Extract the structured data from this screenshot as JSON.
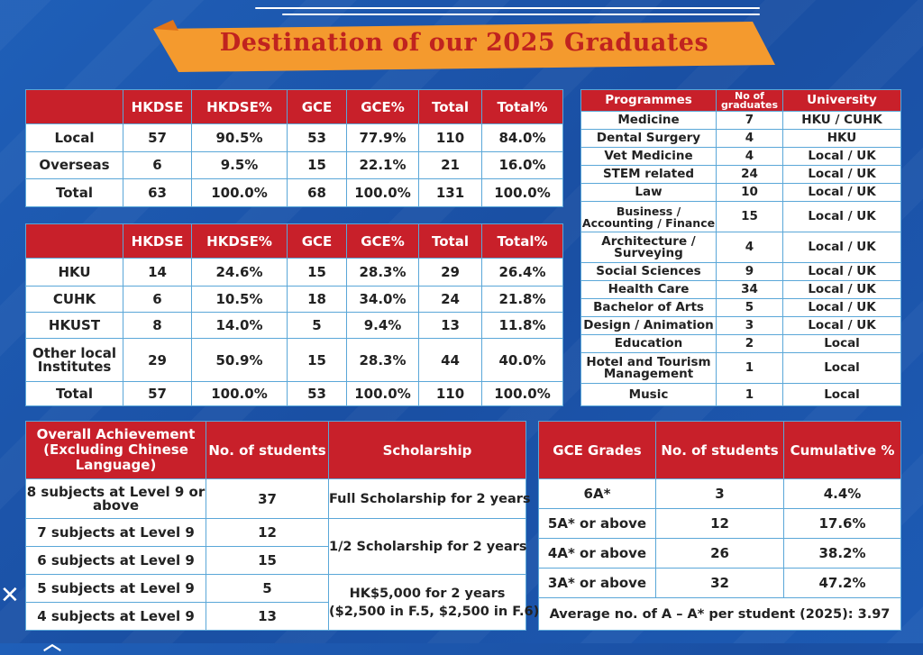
{
  "title": "Destination of our 2025 Graduates",
  "colors": {
    "header_red": "#c8202a",
    "background_blue": "#1f5fb8",
    "banner_orange": "#f49a2e",
    "title_red": "#c0231f"
  },
  "table_destination": {
    "headers": [
      "",
      "HKDSE",
      "HKDSE%",
      "GCE",
      "GCE%",
      "Total",
      "Total%"
    ],
    "rows": [
      [
        "Local",
        "57",
        "90.5%",
        "53",
        "77.9%",
        "110",
        "84.0%"
      ],
      [
        "Overseas",
        "6",
        "9.5%",
        "15",
        "22.1%",
        "21",
        "16.0%"
      ],
      [
        "Total",
        "63",
        "100.0%",
        "68",
        "100.0%",
        "131",
        "100.0%"
      ]
    ]
  },
  "table_local": {
    "headers": [
      "",
      "HKDSE",
      "HKDSE%",
      "GCE",
      "GCE%",
      "Total",
      "Total%"
    ],
    "rows": [
      [
        "HKU",
        "14",
        "24.6%",
        "15",
        "28.3%",
        "29",
        "26.4%"
      ],
      [
        "CUHK",
        "6",
        "10.5%",
        "18",
        "34.0%",
        "24",
        "21.8%"
      ],
      [
        "HKUST",
        "8",
        "14.0%",
        "5",
        "9.4%",
        "13",
        "11.8%"
      ],
      [
        "Other local Institutes",
        "29",
        "50.9%",
        "15",
        "28.3%",
        "44",
        "40.0%"
      ],
      [
        "Total",
        "57",
        "100.0%",
        "53",
        "100.0%",
        "110",
        "100.0%"
      ]
    ]
  },
  "table_programmes": {
    "headers": [
      "Programmes",
      "No of graduates",
      "University"
    ],
    "rows": [
      [
        "Medicine",
        "7",
        "HKU / CUHK"
      ],
      [
        "Dental Surgery",
        "4",
        "HKU"
      ],
      [
        "Vet Medicine",
        "4",
        "Local / UK"
      ],
      [
        "STEM related",
        "24",
        "Local / UK"
      ],
      [
        "Law",
        "10",
        "Local / UK"
      ],
      [
        "Business / Accounting / Finance",
        "15",
        "Local / UK"
      ],
      [
        "Architecture / Surveying",
        "4",
        "Local / UK"
      ],
      [
        "Social Sciences",
        "9",
        "Local / UK"
      ],
      [
        "Health Care",
        "34",
        "Local / UK"
      ],
      [
        "Bachelor of Arts",
        "5",
        "Local / UK"
      ],
      [
        "Design / Animation",
        "3",
        "Local / UK"
      ],
      [
        "Education",
        "2",
        "Local"
      ],
      [
        "Hotel and Tourism Management",
        "1",
        "Local"
      ],
      [
        "Music",
        "1",
        "Local"
      ]
    ]
  },
  "table_achievement": {
    "headers": [
      "Overall Achievement (Excluding Chinese Language)",
      "No. of students",
      "Scholarship"
    ],
    "rows": [
      {
        "label": "8 subjects at Level 9 or above",
        "count": "37"
      },
      {
        "label": "7 subjects at Level 9",
        "count": "12"
      },
      {
        "label": "6 subjects at Level 9",
        "count": "15"
      },
      {
        "label": "5 subjects at Level 9",
        "count": "5"
      },
      {
        "label": "4 subjects at Level 9",
        "count": "13"
      }
    ],
    "scholarships": {
      "full": "Full Scholarship for 2 years",
      "half": "1/2 Scholarship for 2 years",
      "cash_line1": "HK$5,000 for 2 years",
      "cash_line2": "($2,500 in F.5, $2,500 in F.6)"
    }
  },
  "table_gce": {
    "headers": [
      "GCE Grades",
      "No. of students",
      "Cumulative %"
    ],
    "rows": [
      [
        "6A*",
        "3",
        "4.4%"
      ],
      [
        "5A* or above",
        "12",
        "17.6%"
      ],
      [
        "4A* or above",
        "26",
        "38.2%"
      ],
      [
        "3A* or above",
        "32",
        "47.2%"
      ]
    ],
    "footer": "Average no. of A – A* per student (2025): 3.97"
  }
}
